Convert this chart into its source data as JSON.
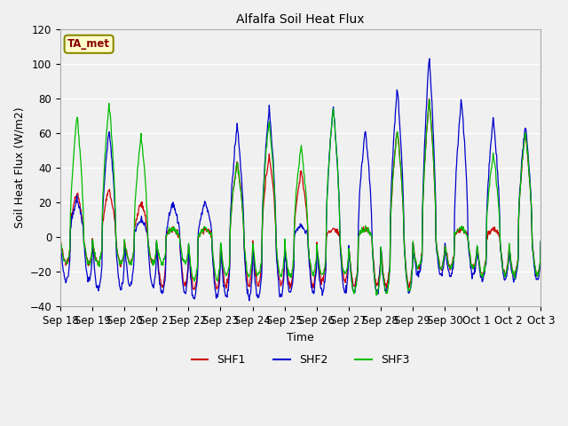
{
  "title": "Alfalfa Soil Heat Flux",
  "xlabel": "Time",
  "ylabel": "Soil Heat Flux (W/m2)",
  "ylim": [
    -40,
    120
  ],
  "bg_color": "#f0f0f0",
  "plot_bg": "#f0f0f0",
  "legend_items": [
    "SHF1",
    "SHF2",
    "SHF3"
  ],
  "legend_colors": [
    "#cc0000",
    "#0000cc",
    "#00bb00"
  ],
  "annotation_text": "TA_met",
  "annotation_bg": "#ffffcc",
  "annotation_border": "#888800",
  "annotation_text_color": "#880000",
  "tick_labels": [
    "Sep 18",
    "Sep 19",
    "Sep 20",
    "Sep 21",
    "Sep 22",
    "Sep 23",
    "Sep 24",
    "Sep 25",
    "Sep 26",
    "Sep 27",
    "Sep 28",
    "Sep 29",
    "Sep 30",
    "Oct 1",
    "Oct 2",
    "Oct 3"
  ],
  "n_points": 960,
  "day_peaks": {
    "0": [
      27,
      22,
      70
    ],
    "1": [
      28,
      62,
      78
    ],
    "2": [
      20,
      10,
      59
    ],
    "3": [
      5,
      20,
      5
    ],
    "4": [
      5,
      20,
      5
    ],
    "5": [
      43,
      65,
      43
    ],
    "6": [
      48,
      75,
      68
    ],
    "7": [
      38,
      7,
      52
    ],
    "8": [
      5,
      75,
      75
    ],
    "9": [
      5,
      62,
      5
    ],
    "10": [
      62,
      86,
      62
    ],
    "11": [
      80,
      104,
      80
    ],
    "12": [
      5,
      80,
      5
    ],
    "13": [
      5,
      69,
      48
    ],
    "14": [
      61,
      65,
      61
    ]
  },
  "day_trough": {
    "0": [
      -15,
      -25,
      -15
    ],
    "1": [
      -15,
      -30,
      -15
    ],
    "2": [
      -15,
      -28,
      -15
    ],
    "3": [
      -28,
      -32,
      -15
    ],
    "4": [
      -30,
      -35,
      -25
    ],
    "5": [
      -28,
      -35,
      -22
    ],
    "6": [
      -28,
      -35,
      -22
    ],
    "7": [
      -28,
      -32,
      -22
    ],
    "8": [
      -25,
      -32,
      -22
    ],
    "9": [
      -28,
      -32,
      -32
    ],
    "10": [
      -28,
      -32,
      -32
    ],
    "11": [
      -18,
      -22,
      -18
    ],
    "12": [
      -18,
      -22,
      -18
    ],
    "13": [
      -22,
      -25,
      -22
    ],
    "14": [
      -22,
      -25,
      -22
    ]
  }
}
